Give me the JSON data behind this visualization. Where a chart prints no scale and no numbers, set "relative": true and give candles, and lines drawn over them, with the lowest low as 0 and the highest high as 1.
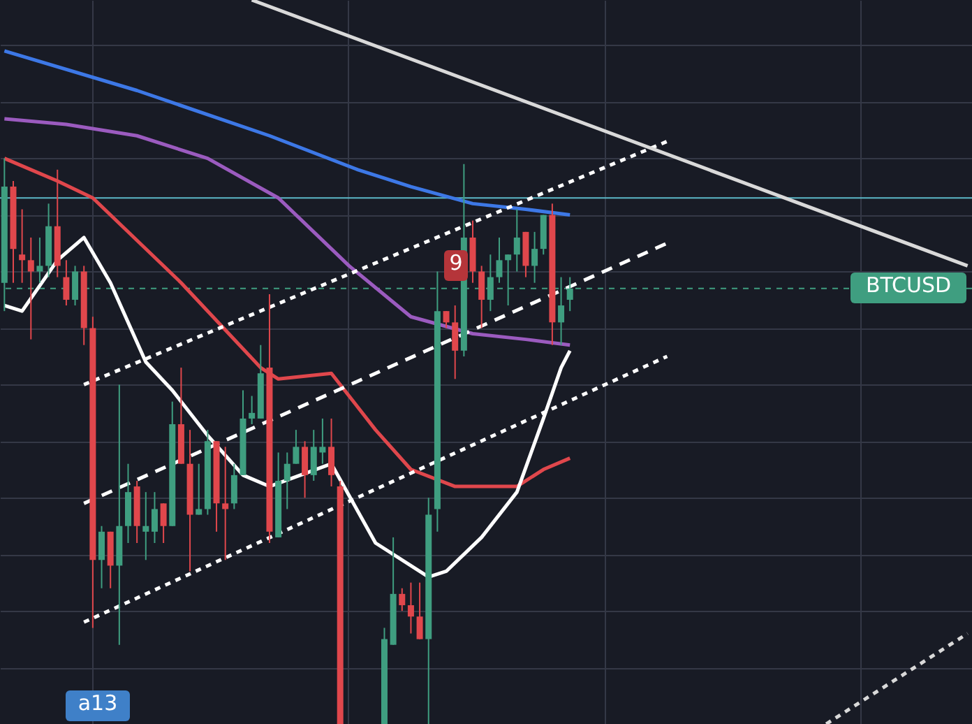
{
  "chart_data": {
    "type": "candlestick",
    "relative": true,
    "grid": true,
    "categories": [
      null,
      null,
      null,
      null,
      null,
      null,
      null,
      null,
      null,
      null,
      null,
      null,
      null,
      null,
      null,
      null,
      null,
      null,
      null,
      null,
      null,
      null,
      null,
      null,
      null,
      null,
      null,
      null,
      null,
      null,
      null,
      null,
      null,
      null,
      null,
      null,
      null,
      null,
      null,
      null,
      null,
      null,
      null,
      null,
      null,
      null,
      null,
      null,
      null,
      null,
      null,
      null,
      null,
      null,
      null,
      null,
      null,
      null,
      null,
      null,
      null,
      null,
      null,
      null,
      null,
      null,
      null,
      null,
      null,
      null,
      null,
      null,
      null,
      null,
      null,
      null,
      null,
      null,
      null,
      null,
      null,
      null,
      null,
      null,
      null,
      null,
      null,
      null,
      null,
      null,
      null,
      null,
      null,
      null,
      null,
      null,
      null,
      null,
      null,
      null,
      null,
      null,
      null,
      null,
      null,
      null,
      null,
      null,
      null,
      null
    ],
    "ohlc": [
      [
        0.78,
        1.0,
        0.73,
        0.95
      ],
      [
        0.95,
        0.96,
        0.78,
        0.84
      ],
      [
        0.83,
        0.91,
        0.78,
        0.82
      ],
      [
        0.82,
        0.86,
        0.68,
        0.8
      ],
      [
        0.8,
        0.86,
        0.78,
        0.81
      ],
      [
        0.81,
        0.92,
        0.79,
        0.88
      ],
      [
        0.88,
        0.98,
        0.79,
        0.81
      ],
      [
        0.79,
        0.82,
        0.74,
        0.75
      ],
      [
        0.75,
        0.81,
        0.74,
        0.8
      ],
      [
        0.8,
        0.81,
        0.67,
        0.7
      ],
      [
        0.7,
        0.72,
        0.17,
        0.29
      ],
      [
        0.29,
        0.35,
        0.24,
        0.34
      ],
      [
        0.34,
        0.34,
        0.24,
        0.28
      ],
      [
        0.28,
        0.6,
        0.14,
        0.35
      ],
      [
        0.35,
        0.46,
        0.32,
        0.41
      ],
      [
        0.42,
        0.43,
        0.32,
        0.35
      ],
      [
        0.34,
        0.41,
        0.29,
        0.35
      ],
      [
        0.34,
        0.41,
        0.32,
        0.38
      ],
      [
        0.39,
        0.39,
        0.32,
        0.35
      ],
      [
        0.35,
        0.57,
        0.35,
        0.53
      ],
      [
        0.53,
        0.63,
        0.46,
        0.46
      ],
      [
        0.46,
        0.52,
        0.27,
        0.37
      ],
      [
        0.37,
        0.46,
        0.37,
        0.38
      ],
      [
        0.38,
        0.52,
        0.37,
        0.5
      ],
      [
        0.5,
        0.5,
        0.34,
        0.39
      ],
      [
        0.39,
        0.49,
        0.29,
        0.38
      ],
      [
        0.39,
        0.46,
        0.38,
        0.44
      ],
      [
        0.44,
        0.59,
        0.44,
        0.54
      ],
      [
        0.54,
        0.58,
        0.53,
        0.55
      ],
      [
        0.54,
        0.67,
        0.54,
        0.62
      ],
      [
        0.63,
        0.76,
        0.32,
        0.34
      ],
      [
        0.33,
        0.48,
        0.33,
        0.43
      ],
      [
        0.43,
        0.48,
        0.38,
        0.46
      ],
      [
        0.46,
        0.52,
        0.46,
        0.49
      ],
      [
        0.49,
        0.5,
        0.4,
        0.44
      ],
      [
        0.44,
        0.52,
        0.43,
        0.49
      ],
      [
        0.48,
        0.54,
        0.46,
        0.49
      ],
      [
        0.49,
        0.54,
        0.42,
        0.44
      ],
      [
        0.42,
        0.43,
        0,
        0
      ],
      null,
      null,
      null,
      null,
      [
        0,
        0.17,
        0,
        0.15
      ],
      [
        0.14,
        0.33,
        0.14,
        0.23
      ],
      [
        0.23,
        0.24,
        0.2,
        0.21
      ],
      [
        0.21,
        0.25,
        0.16,
        0.19
      ],
      [
        0.19,
        0.25,
        0.15,
        0.15
      ],
      [
        0.15,
        0.4,
        0,
        0.37
      ],
      [
        0.38,
        0.8,
        0.34,
        0.73
      ],
      [
        0.73,
        0.73,
        0.7,
        0.71
      ],
      [
        0.71,
        0.74,
        0.61,
        0.66
      ],
      [
        0.66,
        0.99,
        0.65,
        0.86
      ],
      [
        0.86,
        0.89,
        0.78,
        0.8
      ],
      [
        0.8,
        0.81,
        0.7,
        0.75
      ],
      [
        0.75,
        0.83,
        0.73,
        0.79
      ],
      [
        0.79,
        0.86,
        0.78,
        0.82
      ],
      [
        0.82,
        0.83,
        0.74,
        0.83
      ],
      [
        0.83,
        0.91,
        0.8,
        0.86
      ],
      [
        0.87,
        0.87,
        0.79,
        0.81
      ],
      [
        0.81,
        0.87,
        0.78,
        0.84
      ],
      [
        0.84,
        0.9,
        0.83,
        0.9
      ],
      [
        0.9,
        0.92,
        0.67,
        0.71
      ],
      [
        0.71,
        0.79,
        0.67,
        0.74
      ],
      [
        0.75,
        0.79,
        0.73,
        0.77
      ],
      null,
      null,
      null,
      null,
      null,
      null,
      null,
      null,
      null,
      null,
      null,
      null,
      null,
      null,
      null,
      null,
      null,
      null,
      null,
      null,
      null,
      null,
      null,
      null,
      null,
      null,
      null,
      null,
      null,
      null,
      null,
      null,
      null,
      null,
      null,
      null,
      null,
      null,
      null,
      null,
      null,
      null,
      null,
      null,
      null
    ],
    "colors": [
      "#3f9e80",
      "#e0474c",
      "#e0474c",
      "#e0474c",
      "#3f9e80",
      "#3f9e80",
      "#e0474c",
      "#e0474c",
      "#3f9e80",
      "#e0474c",
      "#e0474c",
      "#3f9e80",
      "#e0474c",
      "#3f9e80",
      "#3f9e80",
      "#e0474c",
      "#3f9e80",
      "#3f9e80",
      "#e0474c",
      "#3f9e80",
      "#e0474c",
      "#e0474c",
      "#3f9e80",
      "#3f9e80",
      "#e0474c",
      "#e0474c",
      "#3f9e80",
      "#3f9e80",
      "#3f9e80",
      "#3f9e80",
      "#e0474c",
      "#3f9e80",
      "#3f9e80",
      "#3f9e80",
      "#e0474c",
      "#3f9e80",
      "#3f9e80",
      "#e0474c",
      "#e0474c",
      null,
      null,
      null,
      null,
      "#3f9e80",
      "#3f9e80",
      "#e0474c",
      "#e0474c",
      "#e0474c",
      "#3f9e80",
      "#3f9e80",
      "#e0474c",
      "#e0474c",
      "#3f9e80",
      "#e0474c",
      "#e0474c",
      "#3f9e80",
      "#3f9e80",
      "#3f9e80",
      "#3f9e80",
      "#e0474c",
      "#3f9e80",
      "#3f9e80",
      "#e0474c",
      "#3f9e80",
      "#3f9e80",
      null,
      null,
      null,
      null,
      null,
      null,
      null,
      null,
      null,
      null,
      null,
      null,
      null,
      null,
      null,
      null,
      null,
      null,
      null,
      null,
      null,
      null,
      null,
      null,
      null,
      null,
      null,
      null,
      null,
      null,
      null,
      null,
      null,
      null,
      null,
      null,
      null,
      null,
      null,
      null,
      null,
      null,
      null,
      null,
      null
    ],
    "series": [
      {
        "type": "line",
        "color": "#3d78e6",
        "line_style": "solid",
        "values": [
          1.19,
          null,
          null,
          null,
          null,
          null,
          null,
          null,
          null,
          null,
          null,
          null,
          null,
          null,
          null,
          1.12,
          null,
          null,
          null,
          null,
          null,
          null,
          null,
          null,
          null,
          null,
          null,
          null,
          null,
          null,
          1.04,
          null,
          null,
          null,
          null,
          null,
          null,
          null,
          null,
          null,
          0.98,
          null,
          null,
          null,
          null,
          null,
          0.95,
          null,
          null,
          null,
          null,
          null,
          null,
          0.92,
          null,
          null,
          null,
          null,
          null,
          0.91,
          null,
          null,
          null,
          null,
          0.9,
          null,
          null,
          null,
          null,
          null,
          null,
          null,
          null,
          null,
          null,
          null,
          null,
          null,
          null,
          null,
          null,
          null,
          null,
          null,
          null,
          null,
          null,
          null,
          null,
          null,
          null,
          null,
          null,
          null,
          null,
          null,
          null,
          null,
          null,
          null,
          null,
          null,
          null,
          null,
          null,
          null,
          null,
          null,
          null,
          null
        ]
      },
      {
        "type": "line",
        "color": "#9b5bbf",
        "line_style": "solid",
        "values": [
          1.07,
          null,
          null,
          null,
          null,
          null,
          null,
          1.06,
          null,
          null,
          null,
          null,
          null,
          null,
          null,
          1.04,
          null,
          null,
          null,
          null,
          null,
          null,
          null,
          1.0,
          null,
          null,
          null,
          null,
          null,
          null,
          null,
          0.93,
          null,
          null,
          null,
          null,
          null,
          null,
          null,
          0.81,
          null,
          null,
          null,
          null,
          null,
          null,
          0.72,
          null,
          null,
          null,
          null,
          null,
          null,
          0.69,
          null,
          null,
          null,
          null,
          null,
          0.68,
          null,
          null,
          null,
          null,
          0.67,
          null,
          null,
          null,
          null,
          null,
          null,
          null,
          null,
          null,
          null,
          null,
          null,
          null,
          null,
          null,
          null,
          null,
          null,
          null,
          null,
          null,
          null,
          null,
          null,
          null,
          null,
          null,
          null,
          null,
          null,
          null,
          null,
          null,
          null,
          null,
          null,
          null,
          null,
          null,
          null,
          null,
          null,
          null,
          null,
          null
        ]
      },
      {
        "type": "line",
        "color": "#e0474c",
        "line_style": "solid",
        "values": [
          1.0,
          null,
          null,
          null,
          null,
          null,
          0.96,
          null,
          null,
          null,
          0.93,
          null,
          null,
          null,
          null,
          null,
          null,
          null,
          null,
          null,
          0.78,
          null,
          null,
          null,
          null,
          null,
          null,
          null,
          null,
          0.63,
          null,
          0.61,
          null,
          null,
          null,
          null,
          null,
          0.62,
          null,
          null,
          null,
          null,
          0.52,
          null,
          null,
          null,
          0.45,
          null,
          null,
          null,
          null,
          0.42,
          null,
          null,
          null,
          null,
          null,
          null,
          0.42,
          null,
          null,
          0.45,
          null,
          null,
          0.47,
          null,
          null,
          null,
          null,
          null,
          null,
          null,
          null,
          null,
          null,
          null,
          null,
          null,
          null,
          null,
          null,
          null,
          null,
          null,
          null,
          null,
          null,
          null,
          null,
          null,
          null,
          null,
          null,
          null,
          null,
          null,
          null,
          null,
          null,
          null,
          null,
          null,
          null,
          null,
          null,
          null,
          null,
          null,
          null,
          null
        ]
      },
      {
        "type": "line",
        "color": "#ffffff",
        "line_style": "solid",
        "values": [
          0.74,
          null,
          0.73,
          null,
          null,
          null,
          0.82,
          null,
          null,
          0.86,
          null,
          null,
          0.78,
          null,
          null,
          null,
          0.64,
          null,
          null,
          0.59,
          null,
          null,
          null,
          0.51,
          null,
          null,
          null,
          0.44,
          null,
          null,
          0.42,
          null,
          null,
          null,
          null,
          null,
          null,
          0.46,
          null,
          null,
          null,
          null,
          0.32,
          null,
          null,
          null,
          null,
          null,
          0.26,
          null,
          0.27,
          null,
          null,
          null,
          0.33,
          null,
          null,
          null,
          0.41,
          null,
          null,
          0.54,
          null,
          0.63,
          0.66,
          null,
          null,
          null,
          null,
          null,
          null,
          null,
          null,
          null,
          null,
          null,
          null,
          null,
          null,
          null,
          null,
          null,
          null,
          null,
          null,
          null,
          null,
          null,
          null,
          null,
          null,
          null,
          null,
          null,
          null,
          null,
          null,
          null,
          null,
          null,
          null,
          null,
          null,
          null,
          null,
          null,
          null,
          null,
          null,
          null
        ]
      },
      {
        "type": "line",
        "color": "#ffffff",
        "line_style": "dotted",
        "values": [
          null,
          null,
          null,
          null,
          null,
          null,
          null,
          null,
          null,
          0.6,
          null,
          null,
          null,
          null,
          null,
          null,
          null,
          null,
          null,
          null,
          null,
          null,
          null,
          null,
          null,
          null,
          null,
          null,
          null,
          null,
          null,
          null,
          null,
          null,
          null,
          null,
          null,
          null,
          null,
          null,
          null,
          null,
          null,
          null,
          null,
          null,
          null,
          null,
          null,
          null,
          null,
          null,
          null,
          null,
          null,
          null,
          null,
          null,
          null,
          null,
          null,
          null,
          null,
          null,
          null,
          null,
          null,
          null,
          null,
          null,
          null,
          null,
          null,
          null,
          null,
          1.03,
          null,
          null,
          null,
          null,
          null,
          null,
          null,
          null,
          null,
          null,
          null,
          null,
          null,
          null,
          null,
          null,
          null,
          null,
          null,
          null,
          null,
          null,
          null,
          null,
          null,
          null,
          null,
          null,
          null,
          null,
          null,
          null,
          null,
          null
        ]
      },
      {
        "type": "line",
        "color": "#ffffff",
        "line_style": "dashed",
        "values": [
          null,
          null,
          null,
          null,
          null,
          null,
          null,
          null,
          null,
          0.39,
          null,
          null,
          null,
          null,
          null,
          null,
          null,
          null,
          null,
          null,
          null,
          null,
          null,
          null,
          null,
          null,
          null,
          null,
          null,
          null,
          null,
          null,
          null,
          null,
          null,
          null,
          null,
          null,
          null,
          null,
          null,
          null,
          null,
          null,
          null,
          null,
          null,
          null,
          null,
          null,
          null,
          null,
          null,
          null,
          null,
          null,
          null,
          null,
          null,
          null,
          null,
          null,
          null,
          null,
          null,
          null,
          null,
          null,
          null,
          null,
          null,
          null,
          null,
          null,
          null,
          0.85,
          null,
          null,
          null,
          null,
          null,
          null,
          null,
          null,
          null,
          null,
          null,
          null,
          null,
          null,
          null,
          null,
          null,
          null,
          null,
          null,
          null,
          null,
          null,
          null,
          null,
          null,
          null,
          null,
          null,
          null,
          null,
          null,
          null,
          null
        ]
      },
      {
        "type": "line",
        "color": "#ffffff",
        "line_style": "dotted",
        "values": [
          null,
          null,
          null,
          null,
          null,
          null,
          null,
          null,
          null,
          0.18,
          null,
          null,
          null,
          null,
          null,
          null,
          null,
          null,
          null,
          null,
          null,
          null,
          null,
          null,
          null,
          null,
          null,
          null,
          null,
          null,
          null,
          null,
          null,
          null,
          null,
          null,
          null,
          null,
          null,
          null,
          null,
          null,
          null,
          null,
          null,
          null,
          null,
          null,
          null,
          null,
          null,
          null,
          null,
          null,
          null,
          null,
          null,
          null,
          null,
          null,
          null,
          null,
          null,
          null,
          null,
          null,
          null,
          null,
          null,
          null,
          null,
          null,
          null,
          null,
          null,
          0.65,
          null,
          null,
          null,
          null,
          null,
          null,
          null,
          null,
          null,
          null,
          null,
          null,
          null,
          null,
          null,
          null,
          null,
          null,
          null,
          null,
          null,
          null,
          null,
          null,
          null,
          null,
          null,
          null,
          null,
          null,
          null,
          null,
          null,
          null
        ]
      },
      {
        "type": "line",
        "color": "#d9d9d9",
        "line_style": "solid",
        "values": [
          null,
          null,
          null,
          null,
          null,
          null,
          null,
          null,
          null,
          null,
          null,
          null,
          null,
          null,
          null,
          null,
          null,
          null,
          null,
          null,
          null,
          null,
          null,
          null,
          null,
          null,
          null,
          null,
          1.28,
          null,
          null,
          null,
          null,
          null,
          null,
          null,
          null,
          null,
          null,
          null,
          null,
          null,
          null,
          null,
          null,
          null,
          null,
          null,
          null,
          null,
          null,
          null,
          null,
          null,
          null,
          null,
          null,
          null,
          null,
          null,
          null,
          null,
          null,
          null,
          null,
          null,
          null,
          null,
          null,
          null,
          null,
          null,
          null,
          null,
          null,
          null,
          null,
          null,
          null,
          null,
          null,
          null,
          null,
          null,
          null,
          null,
          null,
          null,
          null,
          null,
          null,
          null,
          null,
          null,
          null,
          null,
          null,
          null,
          null,
          null,
          null,
          null,
          null,
          null,
          null,
          null,
          null,
          null,
          null,
          0.81
        ]
      },
      {
        "type": "line",
        "color": "#d9d9d9",
        "line_style": "dotted",
        "values": [
          null,
          null,
          null,
          null,
          null,
          null,
          null,
          null,
          null,
          null,
          null,
          null,
          null,
          null,
          null,
          null,
          null,
          null,
          null,
          null,
          null,
          null,
          null,
          null,
          null,
          null,
          null,
          null,
          null,
          null,
          null,
          null,
          null,
          null,
          null,
          null,
          null,
          null,
          null,
          null,
          null,
          null,
          null,
          null,
          null,
          null,
          null,
          null,
          null,
          null,
          null,
          null,
          null,
          null,
          null,
          null,
          null,
          null,
          null,
          null,
          null,
          null,
          null,
          null,
          null,
          null,
          null,
          null,
          null,
          null,
          null,
          null,
          null,
          null,
          null,
          null,
          null,
          null,
          null,
          null,
          null,
          null,
          null,
          null,
          null,
          null,
          null,
          null,
          null,
          null,
          null,
          null,
          null,
          0,
          null,
          null,
          null,
          null,
          null,
          null,
          null,
          null,
          null,
          null,
          null,
          null,
          null,
          null,
          null,
          0.16
        ]
      }
    ],
    "ref_lines": [
      {
        "axis": "y",
        "value": 0.93,
        "color": "#5bb8c8",
        "line_style": "solid"
      },
      {
        "axis": "y",
        "value": 0.77,
        "label": "BTCUSD",
        "color": "#3f9e80",
        "line_style": "dotted"
      }
    ],
    "annotations": [
      "9",
      "a13"
    ]
  }
}
